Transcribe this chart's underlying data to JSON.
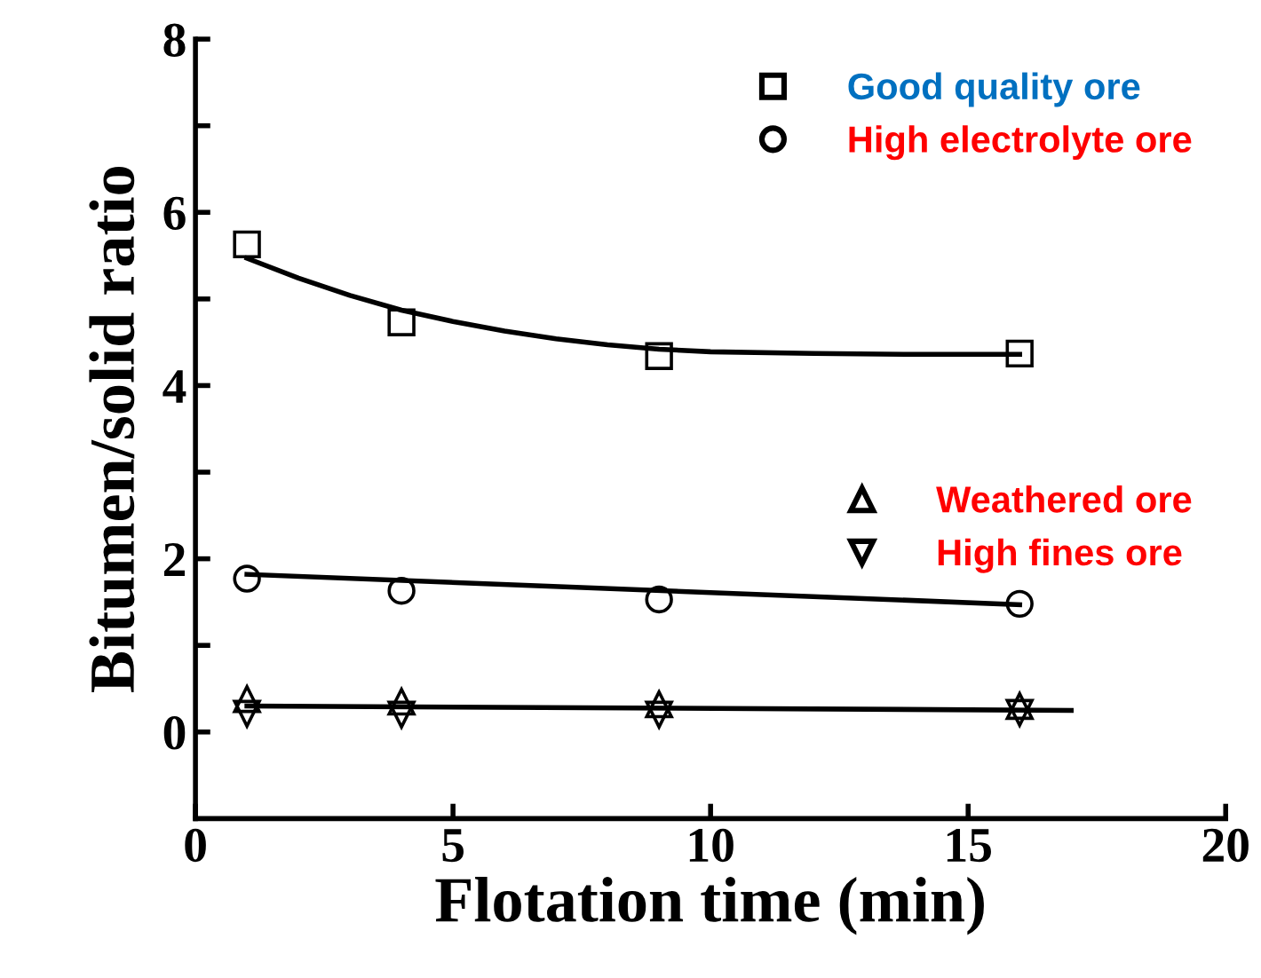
{
  "chart_data": {
    "type": "scatter",
    "xlabel": "Flotation time (min)",
    "ylabel": "Bitumen/solid ratio",
    "xlim": [
      0,
      20
    ],
    "xticks": [
      0,
      5,
      10,
      15,
      20
    ],
    "ylim": [
      -1,
      8
    ],
    "yticks": [
      0,
      {
        "value": 1,
        "label": null
      },
      2,
      {
        "value": 3,
        "label": null
      },
      4,
      {
        "value": 5,
        "label": null
      },
      6,
      {
        "value": 7,
        "label": null
      },
      8
    ],
    "grid": false,
    "legend": "top right",
    "series": [
      {
        "name": "Good quality ore",
        "color": "#000000",
        "marker": "square",
        "x": [
          1,
          4,
          9,
          16
        ],
        "values": [
          5.63,
          4.73,
          4.34,
          4.37
        ]
      },
      {
        "name": "High electrolyte ore",
        "color": "#000000",
        "marker": "circle",
        "x": [
          1,
          4,
          9,
          16
        ],
        "values": [
          1.77,
          1.63,
          1.53,
          1.48
        ]
      },
      {
        "name": "Weathered ore",
        "color": "#000000",
        "marker": "triangle",
        "x": [
          1,
          4,
          9,
          16
        ],
        "values": [
          0.38,
          0.35,
          0.32,
          0.3
        ]
      },
      {
        "name": "High fines ore",
        "color": "#000000",
        "marker": "triangle_down",
        "x": [
          1,
          4,
          9,
          16
        ],
        "values": [
          0.21,
          0.2,
          0.2,
          0.22
        ]
      },
      {
        "type": "line",
        "color": "#000000",
        "line_style": "solid",
        "x": [
          1,
          2,
          3,
          4,
          5,
          6,
          7,
          8,
          9,
          10,
          12,
          14,
          16
        ],
        "values": [
          5.47,
          5.24,
          5.04,
          4.87,
          4.74,
          4.63,
          4.54,
          4.47,
          4.42,
          4.39,
          4.37,
          4.36,
          4.36
        ]
      },
      {
        "type": "line",
        "color": "#000000",
        "line_style": "solid",
        "x": [
          1,
          16
        ],
        "values": [
          1.82,
          1.47
        ]
      },
      {
        "type": "line",
        "color": "#000000",
        "line_style": "solid",
        "x": [
          1,
          17
        ],
        "values": [
          0.3,
          0.25
        ]
      }
    ]
  }
}
